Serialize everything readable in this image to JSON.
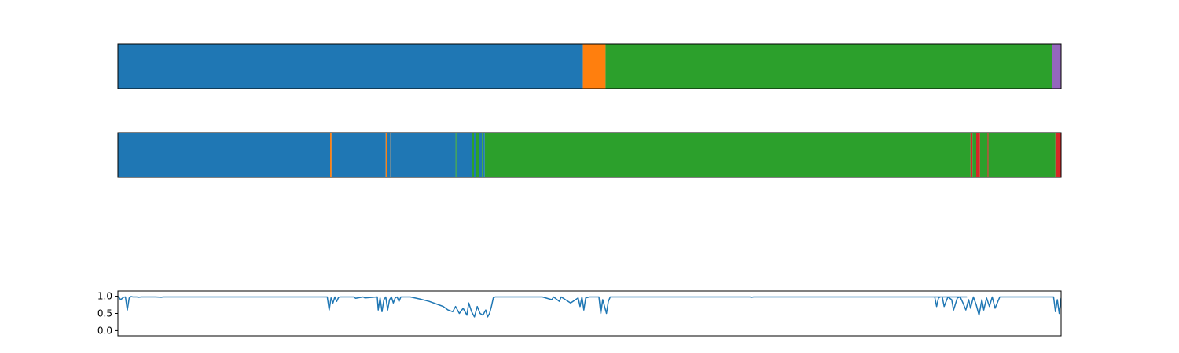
{
  "colors": {
    "blue": "#1f77b4",
    "orange": "#ff7f0e",
    "green": "#2ca02c",
    "red": "#d62728",
    "purple": "#9467bd"
  },
  "chart_data": [
    {
      "type": "segment-bar",
      "title": "",
      "xlim": [
        0,
        1
      ],
      "segments": [
        {
          "start": 0.0,
          "end": 0.493,
          "color": "#1f77b4"
        },
        {
          "start": 0.493,
          "end": 0.517,
          "color": "#ff7f0e"
        },
        {
          "start": 0.517,
          "end": 0.99,
          "color": "#2ca02c"
        },
        {
          "start": 0.99,
          "end": 1.0,
          "color": "#9467bd"
        }
      ]
    },
    {
      "type": "segment-bar",
      "title": "",
      "xlim": [
        0,
        1
      ],
      "segments": [
        {
          "start": 0.0,
          "end": 0.225,
          "color": "#1f77b4"
        },
        {
          "start": 0.225,
          "end": 0.2265,
          "color": "#ff7f0e"
        },
        {
          "start": 0.2265,
          "end": 0.284,
          "color": "#1f77b4"
        },
        {
          "start": 0.284,
          "end": 0.2855,
          "color": "#ff7f0e"
        },
        {
          "start": 0.2855,
          "end": 0.289,
          "color": "#1f77b4"
        },
        {
          "start": 0.289,
          "end": 0.29,
          "color": "#ff7f0e"
        },
        {
          "start": 0.29,
          "end": 0.358,
          "color": "#1f77b4"
        },
        {
          "start": 0.358,
          "end": 0.359,
          "color": "#2ca02c"
        },
        {
          "start": 0.359,
          "end": 0.375,
          "color": "#1f77b4"
        },
        {
          "start": 0.375,
          "end": 0.3775,
          "color": "#2ca02c"
        },
        {
          "start": 0.3775,
          "end": 0.38,
          "color": "#1f77b4"
        },
        {
          "start": 0.38,
          "end": 0.383,
          "color": "#2ca02c"
        },
        {
          "start": 0.383,
          "end": 0.386,
          "color": "#1f77b4"
        },
        {
          "start": 0.386,
          "end": 0.387,
          "color": "#2ca02c"
        },
        {
          "start": 0.387,
          "end": 0.389,
          "color": "#1f77b4"
        },
        {
          "start": 0.389,
          "end": 0.904,
          "color": "#2ca02c"
        },
        {
          "start": 0.904,
          "end": 0.906,
          "color": "#d62728"
        },
        {
          "start": 0.906,
          "end": 0.91,
          "color": "#2ca02c"
        },
        {
          "start": 0.91,
          "end": 0.914,
          "color": "#d62728"
        },
        {
          "start": 0.914,
          "end": 0.922,
          "color": "#2ca02c"
        },
        {
          "start": 0.922,
          "end": 0.923,
          "color": "#d62728"
        },
        {
          "start": 0.923,
          "end": 0.994,
          "color": "#2ca02c"
        },
        {
          "start": 0.994,
          "end": 1.0,
          "color": "#d62728"
        }
      ]
    },
    {
      "type": "line",
      "title": "",
      "xlabel": "",
      "ylabel": "",
      "xlim": [
        0,
        1
      ],
      "ylim": [
        -0.15,
        1.15
      ],
      "yticks": [
        1.0,
        0.5,
        0.0
      ],
      "ytick_labels": [
        "1.0",
        "0.5",
        "0.0"
      ],
      "grid": false,
      "series": [
        {
          "color": "#1f77b4",
          "x": [
            0.0,
            0.003,
            0.006,
            0.008,
            0.01,
            0.012,
            0.014,
            0.016,
            0.02,
            0.022,
            0.025,
            0.04,
            0.046,
            0.048,
            0.06,
            0.2,
            0.222,
            0.224,
            0.226,
            0.228,
            0.23,
            0.232,
            0.234,
            0.236,
            0.25,
            0.252,
            0.26,
            0.262,
            0.275,
            0.276,
            0.278,
            0.28,
            0.282,
            0.284,
            0.286,
            0.288,
            0.29,
            0.292,
            0.294,
            0.296,
            0.298,
            0.3,
            0.31,
            0.32,
            0.33,
            0.34,
            0.345,
            0.35,
            0.355,
            0.358,
            0.362,
            0.366,
            0.37,
            0.372,
            0.375,
            0.378,
            0.381,
            0.384,
            0.387,
            0.39,
            0.392,
            0.394,
            0.396,
            0.398,
            0.4,
            0.42,
            0.45,
            0.46,
            0.462,
            0.468,
            0.47,
            0.48,
            0.488,
            0.49,
            0.492,
            0.494,
            0.496,
            0.5,
            0.51,
            0.512,
            0.514,
            0.516,
            0.518,
            0.52,
            0.522,
            0.54,
            0.56,
            0.56,
            0.67,
            0.672,
            0.674,
            0.9,
            0.866,
            0.868,
            0.87,
            0.872,
            0.874,
            0.876,
            0.88,
            0.884,
            0.886,
            0.89,
            0.893,
            0.896,
            0.899,
            0.902,
            0.904,
            0.907,
            0.91,
            0.913,
            0.916,
            0.918,
            0.921,
            0.924,
            0.927,
            0.93,
            0.935,
            0.94,
            0.95,
            0.98,
            0.992,
            0.994,
            0.996,
            0.998,
            1.0
          ],
          "y": [
            1.0,
            0.9,
            0.97,
            0.98,
            0.6,
            0.95,
            0.99,
            0.98,
            0.98,
            0.97,
            0.98,
            0.98,
            0.97,
            0.98,
            0.98,
            0.98,
            0.98,
            0.6,
            0.95,
            0.8,
            0.98,
            0.85,
            0.97,
            0.98,
            0.98,
            0.94,
            0.98,
            0.95,
            0.98,
            0.6,
            0.95,
            0.55,
            0.9,
            0.98,
            0.6,
            0.9,
            0.98,
            0.8,
            0.95,
            0.98,
            0.85,
            0.98,
            0.98,
            0.92,
            0.85,
            0.75,
            0.7,
            0.6,
            0.55,
            0.7,
            0.5,
            0.65,
            0.45,
            0.8,
            0.55,
            0.4,
            0.7,
            0.5,
            0.45,
            0.6,
            0.4,
            0.5,
            0.7,
            0.95,
            0.98,
            0.98,
            0.98,
            0.9,
            0.98,
            0.85,
            0.98,
            0.8,
            0.95,
            0.7,
            0.98,
            0.6,
            0.95,
            0.98,
            0.98,
            0.5,
            0.9,
            0.7,
            0.5,
            0.85,
            0.98,
            0.98,
            0.98,
            0.98,
            0.98,
            0.97,
            0.98,
            0.98,
            0.98,
            0.7,
            0.95,
            0.98,
            0.98,
            0.7,
            0.98,
            0.9,
            0.6,
            0.95,
            0.98,
            0.8,
            0.6,
            0.9,
            0.65,
            0.98,
            0.75,
            0.45,
            0.9,
            0.6,
            0.95,
            0.7,
            0.98,
            0.65,
            0.98,
            0.98,
            0.98,
            0.98,
            0.98,
            0.55,
            0.9,
            0.5,
            0.95
          ]
        }
      ]
    }
  ]
}
